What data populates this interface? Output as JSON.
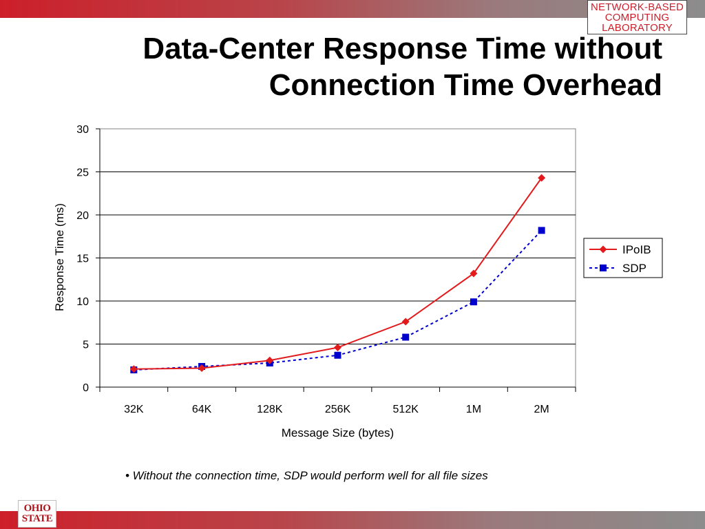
{
  "logo": {
    "line1": "NETWORK-BASED",
    "line2": "COMPUTING",
    "line3": "LABORATORY"
  },
  "title": {
    "line1": "Data-Center Response Time without",
    "line2": "Connection Time Overhead"
  },
  "bullet": "• Without the connection time, SDP would perform well for all file sizes",
  "osu_logo": {
    "line1": "OHIO",
    "line2": "STATE"
  },
  "colors": {
    "ipoib": "#e31a1c",
    "sdp": "#0000cc",
    "accent": "#cc1f2a"
  },
  "chart_data": {
    "type": "line",
    "title": "",
    "xlabel": "Message Size (bytes)",
    "ylabel": "Response Time (ms)",
    "categories": [
      "32K",
      "64K",
      "128K",
      "256K",
      "512K",
      "1M",
      "2M"
    ],
    "ylim": [
      0,
      30
    ],
    "yticks": [
      0,
      5,
      10,
      15,
      20,
      25,
      30
    ],
    "grid": true,
    "legend_position": "right",
    "series": [
      {
        "name": "IPoIB",
        "marker": "diamond",
        "line": "solid",
        "color": "#e31a1c",
        "values": [
          2.1,
          2.2,
          3.1,
          4.6,
          7.6,
          13.2,
          24.3
        ]
      },
      {
        "name": "SDP",
        "marker": "square",
        "line": "dashed",
        "color": "#0000cc",
        "values": [
          2.0,
          2.4,
          2.8,
          3.7,
          5.8,
          9.9,
          18.2
        ]
      }
    ]
  }
}
